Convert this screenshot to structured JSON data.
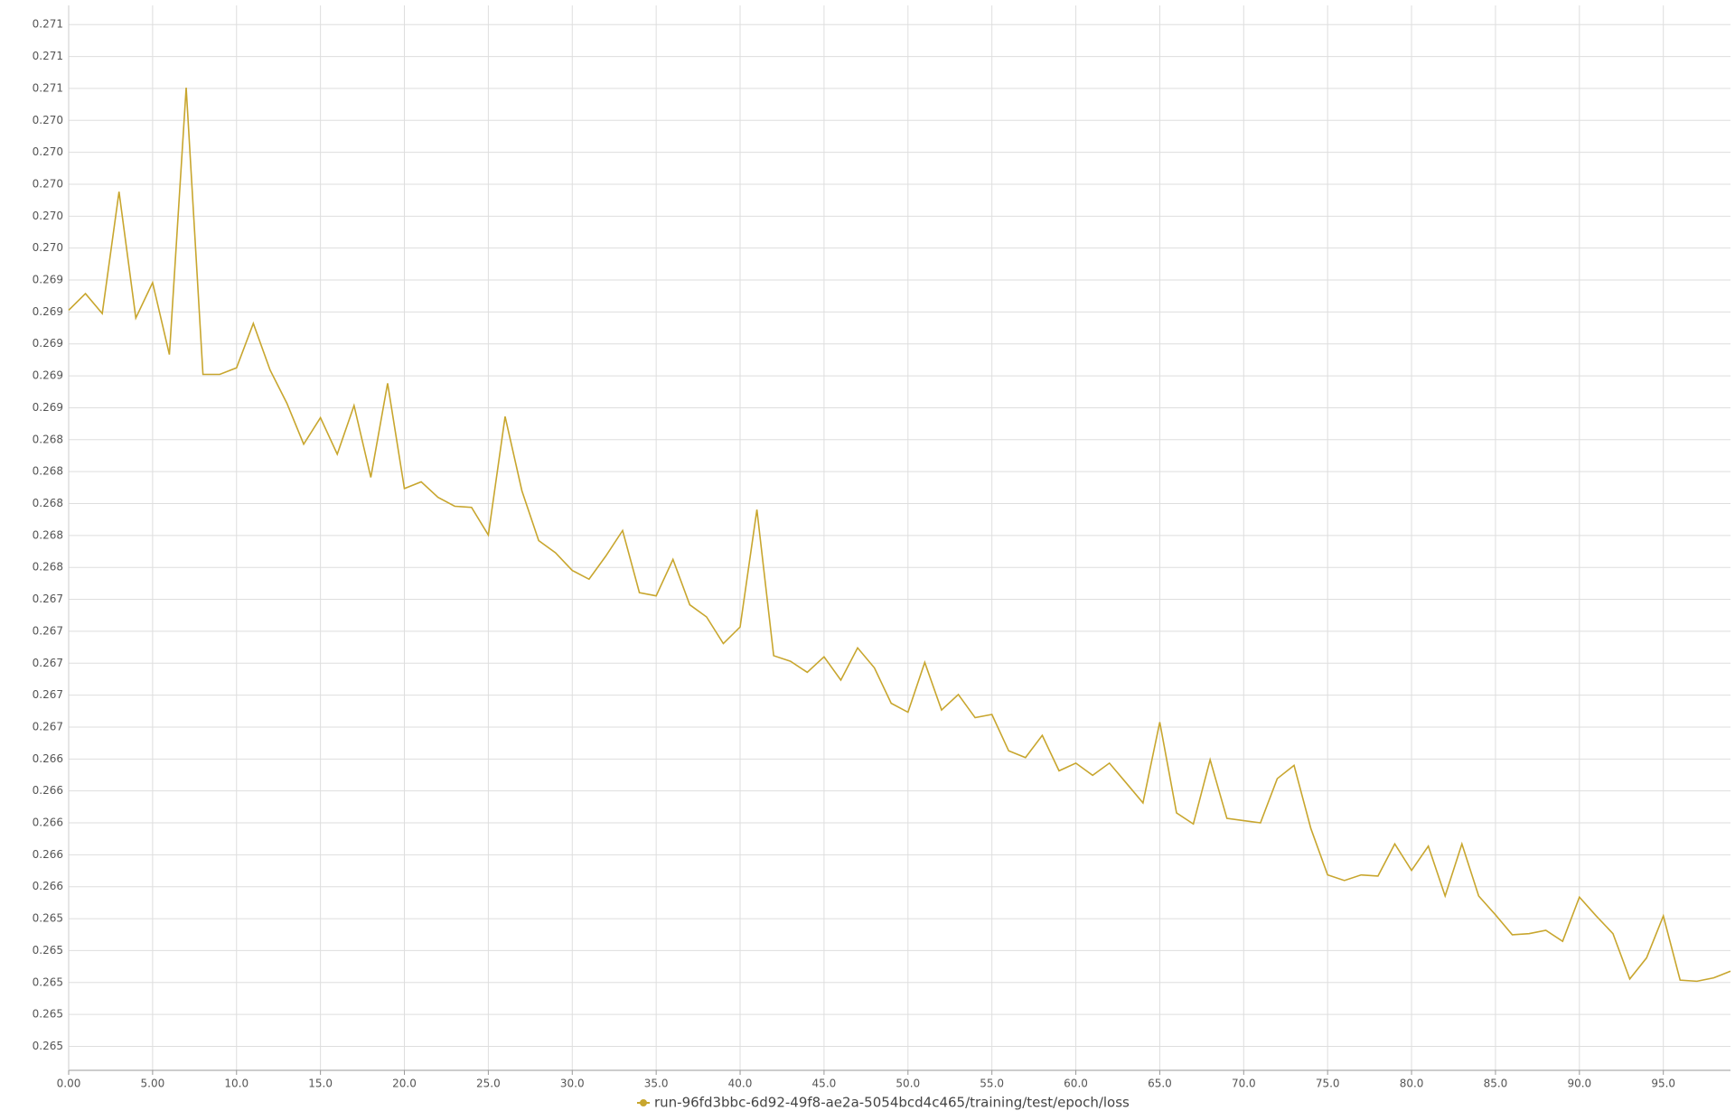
{
  "chart_data": {
    "type": "line",
    "x": [
      0,
      1,
      2,
      3,
      4,
      5,
      6,
      7,
      8,
      9,
      10,
      11,
      12,
      13,
      14,
      15,
      16,
      17,
      18,
      19,
      20,
      21,
      22,
      23,
      24,
      25,
      26,
      27,
      28,
      29,
      30,
      31,
      32,
      33,
      34,
      35,
      36,
      37,
      38,
      39,
      40,
      41,
      42,
      43,
      44,
      45,
      46,
      47,
      48,
      49,
      50,
      51,
      52,
      53,
      54,
      55,
      56,
      57,
      58,
      59,
      60,
      61,
      62,
      63,
      64,
      65,
      66,
      67,
      68,
      69,
      70,
      71,
      72,
      73,
      74,
      75,
      76,
      77,
      78,
      79,
      80,
      81,
      82,
      83,
      84,
      85,
      86,
      87,
      88,
      89,
      90,
      91,
      92,
      93,
      94,
      95,
      96,
      97,
      98,
      99
    ],
    "series": [
      {
        "name": "run-96fd3bbc-6d92-49f8-ae2a-5054bcd4c465/training/test/epoch/loss",
        "color": "#c8a62e",
        "values": [
          0.269211,
          0.269315,
          0.26919,
          0.269953,
          0.269162,
          0.269384,
          0.268933,
          0.270605,
          0.268809,
          0.268809,
          0.26885,
          0.269128,
          0.268836,
          0.268628,
          0.268372,
          0.268538,
          0.268309,
          0.268614,
          0.268164,
          0.268753,
          0.268094,
          0.268136,
          0.268039,
          0.267983,
          0.267976,
          0.267803,
          0.268545,
          0.26808,
          0.267768,
          0.267692,
          0.267581,
          0.267526,
          0.267671,
          0.267831,
          0.267442,
          0.267422,
          0.26765,
          0.267366,
          0.26729,
          0.267123,
          0.267227,
          0.267962,
          0.267047,
          0.267012,
          0.266943,
          0.26704,
          0.266894,
          0.267096,
          0.266971,
          0.266749,
          0.266693,
          0.267005,
          0.266707,
          0.266804,
          0.266659,
          0.266679,
          0.266451,
          0.266409,
          0.266548,
          0.266326,
          0.266374,
          0.266298,
          0.266374,
          0.26625,
          0.266125,
          0.266631,
          0.266062,
          0.265993,
          0.266395,
          0.266028,
          0.266014,
          0.266,
          0.266277,
          0.26636,
          0.265965,
          0.265674,
          0.265639,
          0.265674,
          0.265667,
          0.265868,
          0.265702,
          0.265854,
          0.265542,
          0.265868,
          0.265542,
          0.265424,
          0.265299,
          0.265306,
          0.265327,
          0.265258,
          0.265535,
          0.265417,
          0.265306,
          0.265022,
          0.265154,
          0.265417,
          0.265015,
          0.265008,
          0.265029,
          0.265071
        ]
      }
    ],
    "xlim": [
      0,
      99
    ],
    "xticks": [
      {
        "value": 0,
        "label": "0.00"
      },
      {
        "value": 5,
        "label": "5.00"
      },
      {
        "value": 10,
        "label": "10.0"
      },
      {
        "value": 15,
        "label": "15.0"
      },
      {
        "value": 20,
        "label": "20.0"
      },
      {
        "value": 25,
        "label": "25.0"
      },
      {
        "value": 30,
        "label": "30.0"
      },
      {
        "value": 35,
        "label": "35.0"
      },
      {
        "value": 40,
        "label": "40.0"
      },
      {
        "value": 45,
        "label": "45.0"
      },
      {
        "value": 50,
        "label": "50.0"
      },
      {
        "value": 55,
        "label": "55.0"
      },
      {
        "value": 60,
        "label": "60.0"
      },
      {
        "value": 65,
        "label": "65.0"
      },
      {
        "value": 70,
        "label": "70.0"
      },
      {
        "value": 75,
        "label": "75.0"
      },
      {
        "value": 80,
        "label": "80.0"
      },
      {
        "value": 85,
        "label": "85.0"
      },
      {
        "value": 90,
        "label": "90.0"
      },
      {
        "value": 95,
        "label": "95.0"
      }
    ],
    "ylim": [
      0.26445,
      0.27112
    ],
    "yticks": [
      {
        "value": 0.271,
        "label": "0.271"
      },
      {
        "value": 0.2708,
        "label": "0.271"
      },
      {
        "value": 0.2706,
        "label": "0.271"
      },
      {
        "value": 0.2704,
        "label": "0.270"
      },
      {
        "value": 0.2702,
        "label": "0.270"
      },
      {
        "value": 0.27,
        "label": "0.270"
      },
      {
        "value": 0.2698,
        "label": "0.270"
      },
      {
        "value": 0.2696,
        "label": "0.270"
      },
      {
        "value": 0.2694,
        "label": "0.269"
      },
      {
        "value": 0.2692,
        "label": "0.269"
      },
      {
        "value": 0.269,
        "label": "0.269"
      },
      {
        "value": 0.2688,
        "label": "0.269"
      },
      {
        "value": 0.2686,
        "label": "0.269"
      },
      {
        "value": 0.2684,
        "label": "0.268"
      },
      {
        "value": 0.2682,
        "label": "0.268"
      },
      {
        "value": 0.268,
        "label": "0.268"
      },
      {
        "value": 0.2678,
        "label": "0.268"
      },
      {
        "value": 0.2676,
        "label": "0.268"
      },
      {
        "value": 0.2674,
        "label": "0.267"
      },
      {
        "value": 0.2672,
        "label": "0.267"
      },
      {
        "value": 0.267,
        "label": "0.267"
      },
      {
        "value": 0.2668,
        "label": "0.267"
      },
      {
        "value": 0.2666,
        "label": "0.267"
      },
      {
        "value": 0.2664,
        "label": "0.266"
      },
      {
        "value": 0.2662,
        "label": "0.266"
      },
      {
        "value": 0.266,
        "label": "0.266"
      },
      {
        "value": 0.2658,
        "label": "0.266"
      },
      {
        "value": 0.2656,
        "label": "0.266"
      },
      {
        "value": 0.2654,
        "label": "0.265"
      },
      {
        "value": 0.2652,
        "label": "0.265"
      },
      {
        "value": 0.265,
        "label": "0.265"
      },
      {
        "value": 0.2648,
        "label": "0.265"
      },
      {
        "value": 0.2646,
        "label": "0.265"
      }
    ],
    "grid": true
  }
}
